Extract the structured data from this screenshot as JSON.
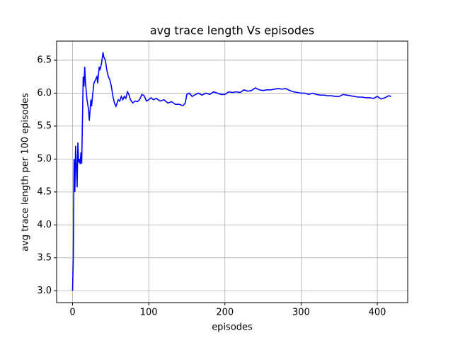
{
  "chart_data": {
    "type": "line",
    "title": "avg trace length Vs episodes",
    "x_label": "episodes",
    "y_label": "avg trace length per 100 episodes",
    "xlim": [
      -20.9,
      439.9
    ],
    "ylim": [
      2.82,
      6.79
    ],
    "xticks": [
      0,
      100,
      200,
      300,
      400
    ],
    "yticks": [
      {
        "value": 3,
        "label": "3.0"
      },
      3.5,
      {
        "value": 4,
        "label": "4.0"
      },
      4.5,
      {
        "value": 5,
        "label": "5.0"
      },
      5.5,
      {
        "value": 6,
        "label": "6.0"
      },
      6.5
    ],
    "grid": true,
    "series": [
      {
        "color": "#0000ff",
        "x": [
          0,
          1,
          2,
          3,
          4,
          5,
          6,
          7,
          8,
          9,
          10,
          11,
          12,
          14,
          15,
          16,
          17,
          19,
          21,
          22,
          24,
          25,
          26,
          28,
          30,
          32,
          33,
          35,
          36,
          38,
          40,
          41,
          43,
          45,
          47,
          49,
          51,
          53,
          55,
          57,
          60,
          62,
          64,
          66,
          68,
          70,
          72,
          74,
          76,
          79,
          82,
          85,
          88,
          91,
          94,
          97,
          100,
          103,
          106,
          110,
          115,
          120,
          125,
          130,
          135,
          140,
          145,
          148,
          150,
          153,
          157,
          160,
          165,
          170,
          175,
          180,
          185,
          190,
          195,
          200,
          205,
          210,
          215,
          220,
          225,
          230,
          235,
          240,
          245,
          250,
          255,
          260,
          265,
          270,
          275,
          280,
          285,
          290,
          295,
          300,
          305,
          310,
          315,
          320,
          325,
          330,
          335,
          340,
          345,
          350,
          355,
          360,
          365,
          370,
          375,
          380,
          385,
          390,
          395,
          400,
          405,
          410,
          415,
          418
        ],
        "values": [
          3.0,
          3.5,
          5.0,
          4.5,
          5.2,
          4.9,
          4.57,
          5.25,
          4.95,
          5.0,
          4.92,
          5.1,
          4.93,
          6.25,
          6.1,
          6.4,
          6.15,
          5.9,
          5.75,
          5.58,
          5.9,
          5.8,
          5.93,
          6.15,
          6.2,
          6.25,
          6.15,
          6.4,
          6.35,
          6.45,
          6.62,
          6.55,
          6.5,
          6.35,
          6.25,
          6.2,
          6.1,
          5.95,
          5.85,
          5.8,
          5.9,
          5.88,
          5.95,
          5.9,
          5.95,
          5.92,
          6.02,
          5.98,
          5.9,
          5.85,
          5.88,
          5.87,
          5.9,
          5.98,
          5.96,
          5.88,
          5.9,
          5.93,
          5.9,
          5.92,
          5.88,
          5.9,
          5.85,
          5.87,
          5.83,
          5.83,
          5.81,
          5.85,
          5.98,
          6.0,
          5.95,
          5.97,
          6.0,
          5.97,
          6.0,
          5.98,
          6.02,
          6.0,
          5.98,
          5.98,
          6.02,
          6.01,
          6.02,
          6.01,
          6.05,
          6.03,
          6.04,
          6.08,
          6.05,
          6.04,
          6.05,
          6.05,
          6.06,
          6.07,
          6.06,
          6.07,
          6.04,
          6.02,
          6.01,
          6.0,
          6.0,
          5.98,
          6.0,
          5.98,
          5.97,
          5.97,
          5.96,
          5.96,
          5.95,
          5.95,
          5.98,
          5.97,
          5.96,
          5.95,
          5.94,
          5.94,
          5.93,
          5.93,
          5.92,
          5.95,
          5.91,
          5.93,
          5.96,
          5.95
        ]
      }
    ]
  }
}
